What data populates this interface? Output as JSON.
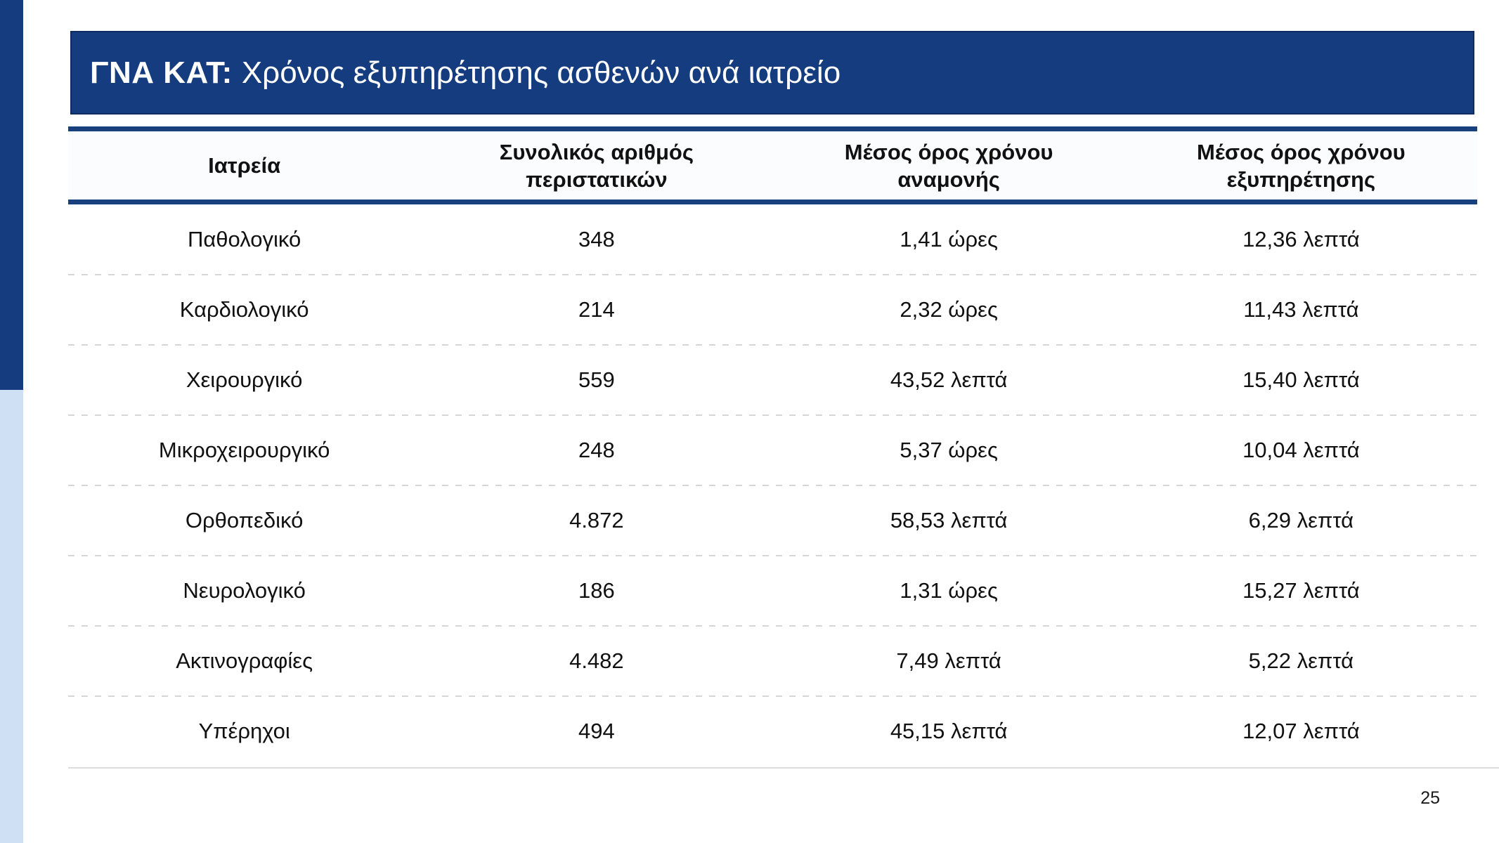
{
  "slide": {
    "title": {
      "prefix": "ΓΝΑ ΚΑΤ:",
      "rest": "Χρόνος εξυπηρέτησης ασθενών ανά ιατρείο"
    },
    "page_number": "25"
  },
  "table": {
    "headers": {
      "clinic": "Ιατρεία",
      "total_cases": "Συνολικός αριθμός περιστατικών",
      "avg_wait": "Μέσος όρος χρόνου αναμονής",
      "avg_service": "Μέσος όρος χρόνου εξυπηρέτησης"
    },
    "rows": [
      {
        "clinic": "Παθολογικό",
        "cases": "348",
        "wait": "1,41 ώρες",
        "service": "12,36 λεπτά"
      },
      {
        "clinic": "Καρδιολογικό",
        "cases": "214",
        "wait": "2,32 ώρες",
        "service": "11,43 λεπτά"
      },
      {
        "clinic": "Χειρουργικό",
        "cases": "559",
        "wait": "43,52 λεπτά",
        "service": "15,40 λεπτά"
      },
      {
        "clinic": "Μικροχειρουργικό",
        "cases": "248",
        "wait": "5,37 ώρες",
        "service": "10,04 λεπτά"
      },
      {
        "clinic": "Ορθοπεδικό",
        "cases": "4.872",
        "wait": "58,53 λεπτά",
        "service": "6,29 λεπτά"
      },
      {
        "clinic": "Νευρολογικό",
        "cases": "186",
        "wait": "1,31 ώρες",
        "service": "15,27 λεπτά"
      },
      {
        "clinic": "Ακτινογραφίες",
        "cases": "4.482",
        "wait": "7,49 λεπτά",
        "service": "5,22 λεπτά"
      },
      {
        "clinic": "Υπέρηχοι",
        "cases": "494",
        "wait": "45,15 λεπτά",
        "service": "12,07 λεπτά"
      }
    ]
  },
  "colors": {
    "navy": "#143c7e",
    "rule_navy": "#17407c",
    "light_blue_strip": "#cfe0f4",
    "row_divider": "#d6d6d6",
    "bottom_line": "#dcdcdc",
    "title_text": "#ffffff",
    "body_text": "#111111"
  }
}
